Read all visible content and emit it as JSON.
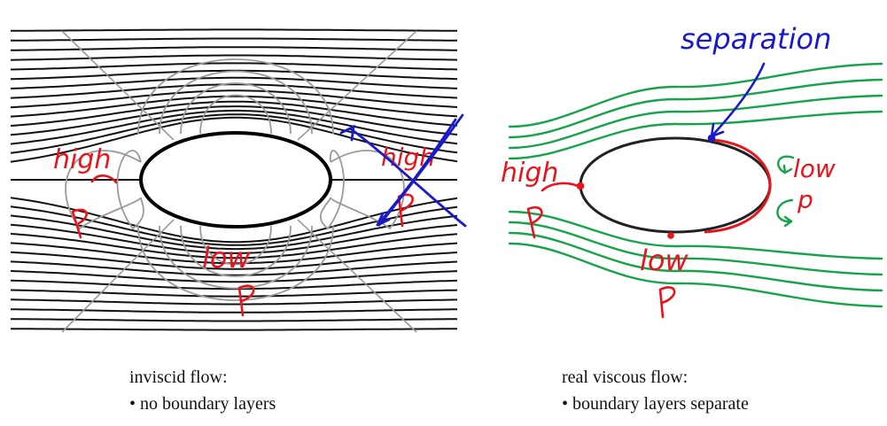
{
  "left_panel": {
    "caption_title": "inviscid flow:",
    "bullet": "•",
    "caption_point": "no boundary layers",
    "annotations": {
      "high": "high",
      "p_high": "p",
      "low": "low",
      "p_low": "p",
      "crossed_high": "high",
      "crossed_p": "p"
    }
  },
  "right_panel": {
    "caption_title": "real viscous flow:",
    "bullet": "•",
    "caption_point": "boundary layers separate",
    "annotations": {
      "separation": "separation",
      "high": "high",
      "p_high": "p",
      "low_top": "low",
      "p_right": "p",
      "low_bottom": "low",
      "p_bottom": "p"
    }
  },
  "colors": {
    "streamline": "#111111",
    "isobar": "#9a9a9a",
    "body_outline": "#000000",
    "annotation_red": "#e8141b",
    "annotation_blue": "#1a1acb",
    "streamline_green": "#16a34a"
  }
}
